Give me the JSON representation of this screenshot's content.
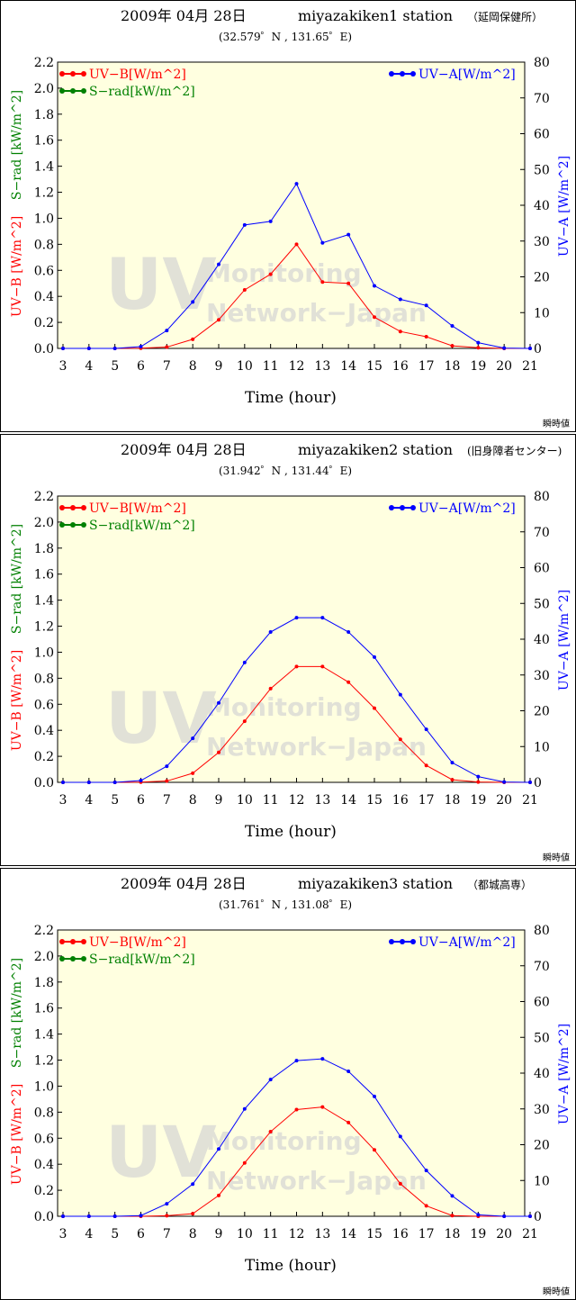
{
  "charts": [
    {
      "title_date": "2009年 04月 28日",
      "station": "miyazakiken1 station",
      "station_jp": "（延岡保健所）",
      "coords": "(32.579゜N , 131.65゜E)",
      "footnote": "瞬時値"
    },
    {
      "title_date": "2009年 04月 28日",
      "station": "miyazakiken2 station",
      "station_jp": "(旧身障者センター)",
      "coords": "(31.942゜N , 131.44゜E)",
      "footnote": "瞬時値"
    },
    {
      "title_date": "2009年 04月 28日",
      "station": "miyazakiken3 station",
      "station_jp": "（都城高専）",
      "coords": "(31.761゜N , 131.08゜E)",
      "footnote": "瞬時値"
    }
  ],
  "common": {
    "xlabel": "Time (hour)",
    "ylabel_left_uvb": "UV−B [W/m^2]",
    "ylabel_left_srad": "S−rad [kW/m^2]",
    "ylabel_right": "UV−A [W/m^2]",
    "legend_uvb": "UV−B[W/m^2]",
    "legend_srad": "S−rad[kW/m^2]",
    "legend_uva": "UV−A[W/m^2]",
    "watermark_big": "UV",
    "watermark_line1": "Monitoring",
    "watermark_line2": "Network−Japan",
    "colors": {
      "uvb": "#ff0000",
      "srad": "#008000",
      "uva": "#0000ff",
      "plot_bg": "#ffffe0"
    }
  },
  "chart_data": [
    {
      "type": "line",
      "x": [
        3,
        4,
        5,
        6,
        7,
        8,
        9,
        10,
        11,
        12,
        13,
        14,
        15,
        16,
        17,
        18,
        19,
        20,
        21
      ],
      "xlim": [
        3,
        21
      ],
      "ylim_left": [
        0,
        2.2
      ],
      "ylim_right": [
        0,
        80
      ],
      "left_ticks": [
        "0.0",
        "0.2",
        "0.4",
        "0.6",
        "0.8",
        "1.0",
        "1.2",
        "1.4",
        "1.6",
        "1.8",
        "2.0",
        "2.2"
      ],
      "right_ticks": [
        "0",
        "10",
        "20",
        "30",
        "40",
        "50",
        "60",
        "70",
        "80"
      ],
      "x_ticks": [
        "3",
        "4",
        "5",
        "6",
        "7",
        "8",
        "9",
        "10",
        "11",
        "12",
        "13",
        "14",
        "15",
        "16",
        "17",
        "18",
        "19",
        "20",
        "21"
      ],
      "series": [
        {
          "name": "UV−B[W/m^2]",
          "axis": "left",
          "color": "#ff0000",
          "values": [
            0,
            0,
            0,
            0.002,
            0.01,
            0.07,
            0.22,
            0.45,
            0.57,
            0.8,
            0.51,
            0.5,
            0.24,
            0.13,
            0.09,
            0.02,
            0.005,
            0,
            0
          ]
        },
        {
          "name": "UV−A[W/m^2]",
          "axis": "right",
          "color": "#0000ff",
          "values": [
            0,
            0,
            0,
            0.5,
            5.0,
            13.0,
            23.5,
            34.5,
            35.5,
            46.0,
            29.5,
            31.8,
            17.5,
            13.7,
            12.0,
            6.3,
            1.6,
            0.1,
            0
          ]
        }
      ]
    },
    {
      "type": "line",
      "x": [
        3,
        4,
        5,
        6,
        7,
        8,
        9,
        10,
        11,
        12,
        13,
        14,
        15,
        16,
        17,
        18,
        19,
        20,
        21
      ],
      "xlim": [
        3,
        21
      ],
      "ylim_left": [
        0,
        2.2
      ],
      "ylim_right": [
        0,
        80
      ],
      "left_ticks": [
        "0.0",
        "0.2",
        "0.4",
        "0.6",
        "0.8",
        "1.0",
        "1.2",
        "1.4",
        "1.6",
        "1.8",
        "2.0",
        "2.2"
      ],
      "right_ticks": [
        "0",
        "10",
        "20",
        "30",
        "40",
        "50",
        "60",
        "70",
        "80"
      ],
      "x_ticks": [
        "3",
        "4",
        "5",
        "6",
        "7",
        "8",
        "9",
        "10",
        "11",
        "12",
        "13",
        "14",
        "15",
        "16",
        "17",
        "18",
        "19",
        "20",
        "21"
      ],
      "series": [
        {
          "name": "UV−B[W/m^2]",
          "axis": "left",
          "color": "#ff0000",
          "values": [
            0,
            0,
            0,
            0.002,
            0.01,
            0.07,
            0.23,
            0.47,
            0.72,
            0.89,
            0.89,
            0.77,
            0.57,
            0.33,
            0.13,
            0.02,
            0.003,
            0,
            0
          ]
        },
        {
          "name": "UV−A[W/m^2]",
          "axis": "right",
          "color": "#0000ff",
          "values": [
            0,
            0,
            0,
            0.5,
            4.5,
            12.3,
            22.2,
            33.5,
            42.0,
            46.0,
            46.0,
            42.0,
            35.0,
            24.5,
            14.8,
            5.5,
            1.6,
            0.1,
            0
          ]
        }
      ]
    },
    {
      "type": "line",
      "x": [
        3,
        4,
        5,
        6,
        7,
        8,
        9,
        10,
        11,
        12,
        13,
        14,
        15,
        16,
        17,
        18,
        19,
        20,
        21
      ],
      "xlim": [
        3,
        21
      ],
      "ylim_left": [
        0,
        2.2
      ],
      "ylim_right": [
        0,
        80
      ],
      "left_ticks": [
        "0.0",
        "0.2",
        "0.4",
        "0.6",
        "0.8",
        "1.0",
        "1.2",
        "1.4",
        "1.6",
        "1.8",
        "2.0",
        "2.2"
      ],
      "right_ticks": [
        "0",
        "10",
        "20",
        "30",
        "40",
        "50",
        "60",
        "70",
        "80"
      ],
      "x_ticks": [
        "3",
        "4",
        "5",
        "6",
        "7",
        "8",
        "9",
        "10",
        "11",
        "12",
        "13",
        "14",
        "15",
        "16",
        "17",
        "18",
        "19",
        "20",
        "21"
      ],
      "series": [
        {
          "name": "UV−B[W/m^2]",
          "axis": "left",
          "color": "#ff0000",
          "values": [
            0,
            0,
            0,
            0,
            0.004,
            0.02,
            0.16,
            0.41,
            0.65,
            0.82,
            0.84,
            0.72,
            0.51,
            0.25,
            0.08,
            0.005,
            0,
            0,
            0
          ]
        },
        {
          "name": "UV−A[W/m^2]",
          "axis": "right",
          "color": "#0000ff",
          "values": [
            0,
            0,
            0,
            0.2,
            3.5,
            9.0,
            18.8,
            30.0,
            38.2,
            43.5,
            44.0,
            40.5,
            33.5,
            22.3,
            12.8,
            5.7,
            0.4,
            0,
            0
          ]
        }
      ]
    }
  ]
}
